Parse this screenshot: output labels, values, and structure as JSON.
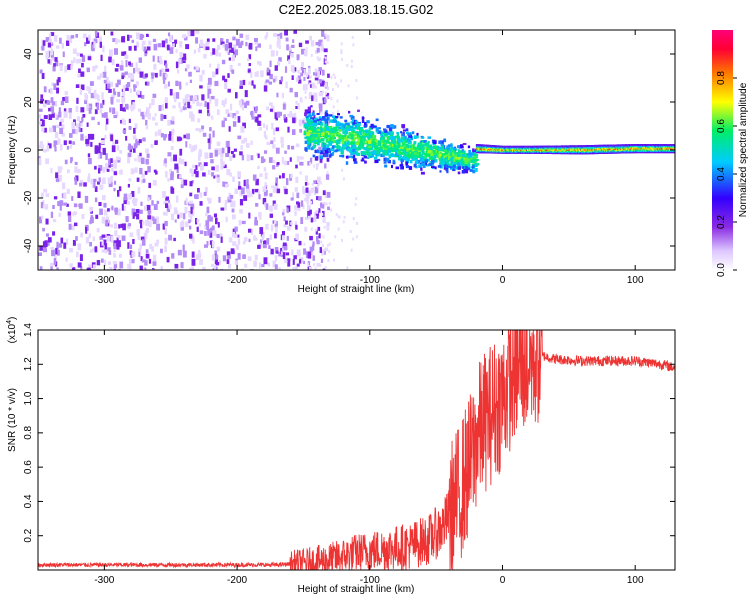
{
  "figure": {
    "title": "C2E2.2025.083.18.15.G02"
  },
  "chart_data": [
    {
      "type": "heatmap",
      "xlabel": "Height of straight line (km)",
      "ylabel": "Frequency (Hz)",
      "xlim": [
        -350,
        130
      ],
      "ylim": [
        -50,
        50
      ],
      "xticks": [
        -300,
        -200,
        -100,
        0,
        100
      ],
      "yticks": [
        -40,
        -20,
        0,
        20,
        40
      ],
      "colorbar": {
        "label": "Normalized spectral amplitude",
        "range": [
          0.0,
          1.0
        ],
        "ticks": [
          0.0,
          0.2,
          0.4,
          0.6,
          0.8
        ],
        "tick_labels": [
          "0.0",
          "0.2",
          "0.4",
          "0.6",
          "0.8"
        ],
        "colormap": [
          "#ffffff",
          "#cc99ff",
          "#8a2be2",
          "#3300ff",
          "#00ccff",
          "#00ee66",
          "#ffff00",
          "#ff7700",
          "#ff0033",
          "#ff0077"
        ]
      },
      "features": [
        {
          "region": "noise",
          "x_range": [
            -350,
            -150
          ],
          "freq_range": [
            -50,
            50
          ],
          "level": 0.1
        },
        {
          "region": "broad_band",
          "x": [
            -150,
            -120,
            -90,
            -60,
            -40,
            -20
          ],
          "center": [
            8,
            6,
            3,
            0,
            -2,
            -4
          ],
          "width": [
            12,
            14,
            12,
            10,
            8,
            6
          ],
          "level": 0.4
        },
        {
          "region": "narrow_line",
          "x": [
            -20,
            0,
            20,
            60,
            100,
            130
          ],
          "center": [
            1,
            0.5,
            0.5,
            0.5,
            1,
            1
          ],
          "width": [
            3,
            2.5,
            2.5,
            3,
            3,
            3
          ],
          "level": 0.85
        }
      ]
    },
    {
      "type": "line",
      "xlabel": "Height of straight line (km)",
      "ylabel": "SNR (10 * v/v)",
      "multiplier_label": "(x10",
      "multiplier_exp": "4",
      "multiplier_close": ")",
      "xlim": [
        -350,
        130
      ],
      "ylim": [
        0,
        1.4
      ],
      "xticks": [
        -300,
        -200,
        -100,
        0,
        100
      ],
      "yticks": [
        0.2,
        0.4,
        0.6,
        0.8,
        1.0,
        1.2,
        1.4
      ],
      "ytick_labels": [
        "0.2",
        "0.4",
        "0.6",
        "0.8",
        "1.0",
        "1.2",
        "1.4"
      ],
      "series": [
        {
          "color": "#ee3333",
          "x": [
            -350,
            -300,
            -250,
            -200,
            -170,
            -150,
            -130,
            -110,
            -90,
            -70,
            -55,
            -45,
            -35,
            -25,
            -20,
            -15,
            -10,
            -5,
            0,
            5,
            10,
            15,
            20,
            25,
            30,
            35,
            40,
            60,
            80,
            100,
            120,
            130
          ],
          "y": [
            0.03,
            0.03,
            0.03,
            0.03,
            0.03,
            0.04,
            0.06,
            0.1,
            0.12,
            0.14,
            0.18,
            0.25,
            0.4,
            0.6,
            0.75,
            0.85,
            0.9,
            0.95,
            1.0,
            1.1,
            1.17,
            1.2,
            1.22,
            1.24,
            1.25,
            1.24,
            1.23,
            1.22,
            1.22,
            1.22,
            1.2,
            1.18
          ]
        }
      ]
    }
  ]
}
